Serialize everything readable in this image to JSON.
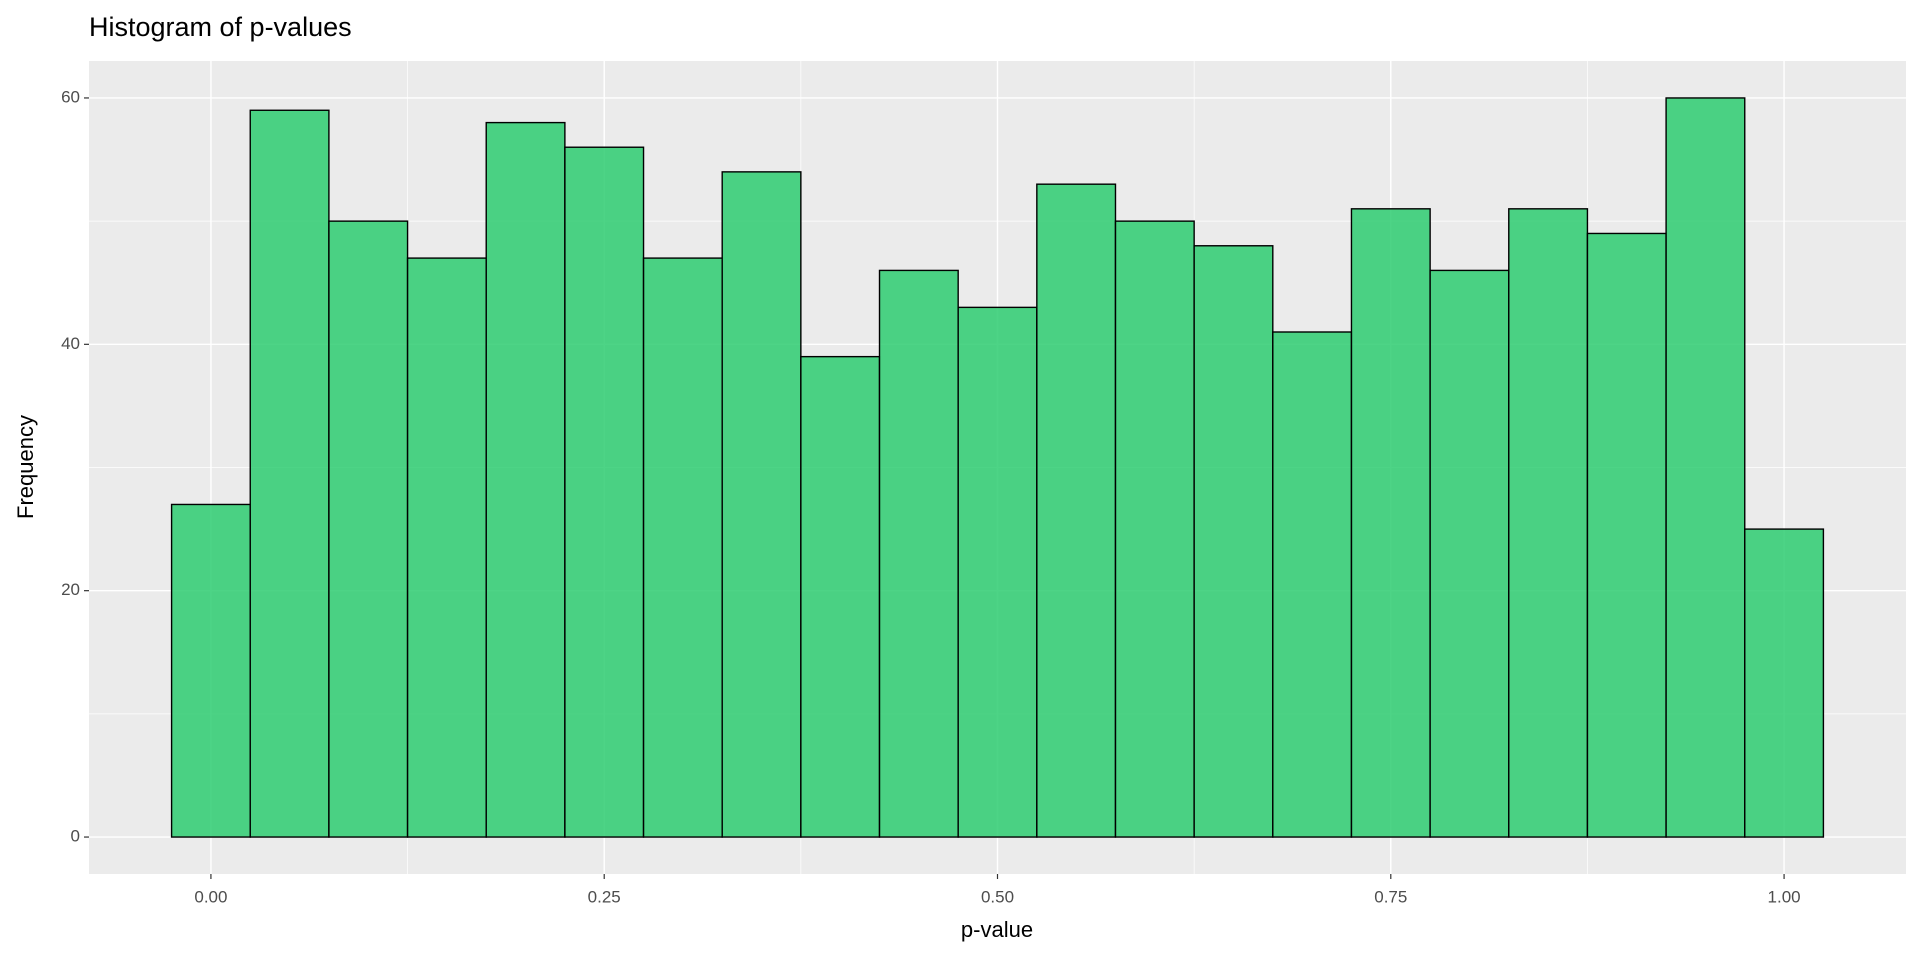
{
  "chart_data": {
    "type": "histogram",
    "title": "Histogram of p-values",
    "x_label": "p-value",
    "y_label": "Frequency",
    "bins": [
      -0.025,
      0.025,
      0.075,
      0.125,
      0.175,
      0.225,
      0.275,
      0.325,
      0.375,
      0.425,
      0.475,
      0.525,
      0.575,
      0.625,
      0.675,
      0.725,
      0.775,
      0.825,
      0.875,
      0.925,
      0.975,
      1.025
    ],
    "values": [
      27,
      59,
      50,
      47,
      58,
      56,
      47,
      54,
      39,
      46,
      43,
      53,
      50,
      48,
      41,
      51,
      46,
      51,
      49,
      60,
      25
    ],
    "color": "#2ecc71",
    "xlim": [
      -0.0775,
      1.0775
    ],
    "xticks": [
      {
        "value": 0,
        "label": "0.00"
      },
      {
        "value": 0.25,
        "label": "0.25"
      },
      {
        "value": 0.5,
        "label": "0.50"
      },
      {
        "value": 0.75,
        "label": "0.75"
      },
      {
        "value": 1,
        "label": "1.00"
      }
    ],
    "ylim": [
      -3,
      63
    ],
    "yticks": [
      0,
      20,
      40,
      60
    ],
    "grid": true
  }
}
